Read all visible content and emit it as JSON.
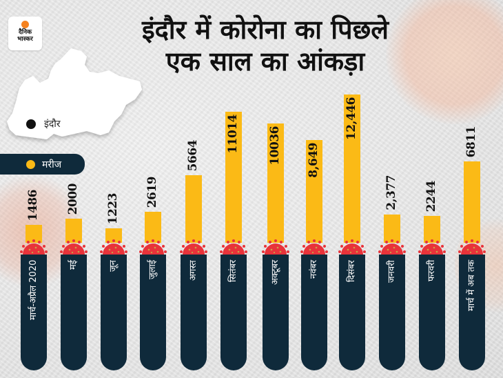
{
  "brand": {
    "logo_line1": "दैनिक",
    "logo_line2": "भास्कर",
    "accent": "#f5821f"
  },
  "title": {
    "line1": "इंदौर में कोरोना का पिछले",
    "line2": "एक साल का आंकड़ा"
  },
  "map": {
    "city_label": "इंदौर"
  },
  "legend": {
    "label": "मरीज",
    "color": "#fbba16"
  },
  "colors": {
    "bar": "#fbba16",
    "tube": "#0f2a3b",
    "virus": "#e8333a",
    "background": "#e6e6e6"
  },
  "bars": [
    {
      "label": "मार्च-अप्रैल 2020",
      "value_text": "1486"
    },
    {
      "label": "मई",
      "value_text": "2000"
    },
    {
      "label": "जून",
      "value_text": "1223"
    },
    {
      "label": "जुलाई",
      "value_text": "2619"
    },
    {
      "label": "अगस्त",
      "value_text": "5664"
    },
    {
      "label": "सितंबर",
      "value_text": "11014"
    },
    {
      "label": "अक्टूबर",
      "value_text": "10036"
    },
    {
      "label": "नवंबर",
      "value_text": "8,649"
    },
    {
      "label": "दिसंबर",
      "value_text": "12,446"
    },
    {
      "label": "जनवरी",
      "value_text": "2,377"
    },
    {
      "label": "फरवरी",
      "value_text": "2244"
    },
    {
      "label": "मार्च में अब तक",
      "value_text": "6811"
    }
  ],
  "chart_data": {
    "type": "bar",
    "title": "इंदौर में कोरोना का पिछले एक साल का आंकड़ा",
    "xlabel": "",
    "ylabel": "",
    "legend": [
      "मरीज"
    ],
    "legend_position": "top-left",
    "grid": false,
    "categories": [
      "मार्च-अप्रैल 2020",
      "मई",
      "जून",
      "जुलाई",
      "अगस्त",
      "सितंबर",
      "अक्टूबर",
      "नवंबर",
      "दिसंबर",
      "जनवरी",
      "फरवरी",
      "मार्च में अब तक"
    ],
    "series": [
      {
        "name": "मरीज",
        "values": [
          1486,
          2000,
          1223,
          2619,
          5664,
          11014,
          10036,
          8649,
          12446,
          2377,
          2244,
          6811
        ]
      }
    ],
    "ylim": [
      0,
      13000
    ]
  }
}
